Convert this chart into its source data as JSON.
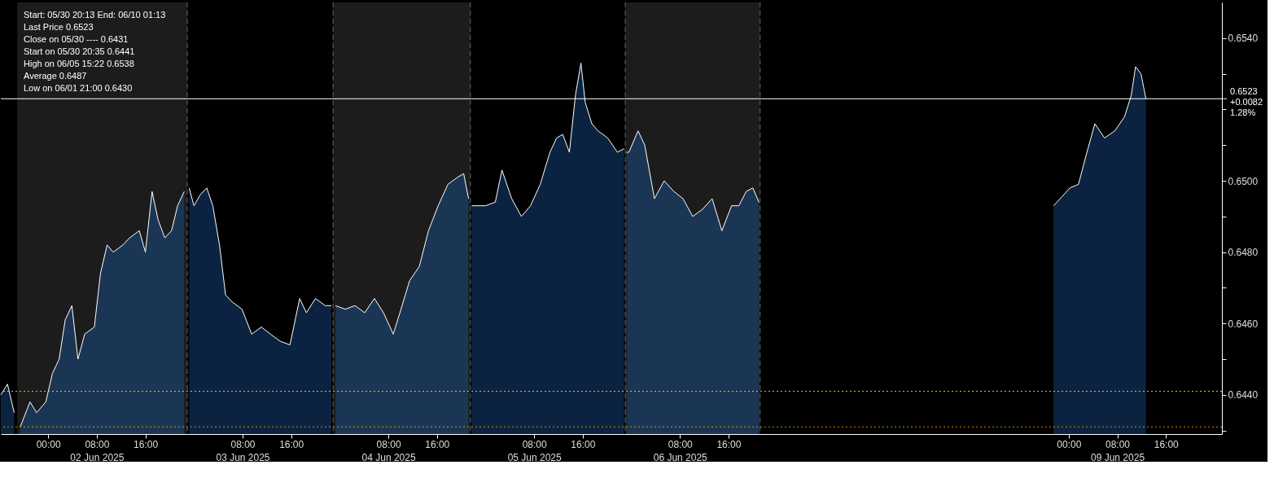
{
  "chart_data": {
    "type": "area",
    "series": [
      {
        "color": "#0b2341",
        "x": [
          "2025-06-01T16:12",
          "2025-06-01T17:18",
          "2025-06-01T18:24"
        ],
        "values": [
          0.644,
          0.6443,
          0.6435
        ]
      },
      {
        "color": "#1b3654",
        "x": [
          "2025-06-01T19:24",
          "2025-06-01T21:00",
          "2025-06-01T22:06",
          "2025-06-01T23:36",
          "2025-06-02T00:42",
          "2025-06-02T01:48",
          "2025-06-02T02:48",
          "2025-06-02T03:54",
          "2025-06-02T04:54",
          "2025-06-02T06:00",
          "2025-06-02T07:36",
          "2025-06-02T08:36",
          "2025-06-02T09:42",
          "2025-06-02T10:42",
          "2025-06-02T12:18",
          "2025-06-02T13:24",
          "2025-06-02T15:00",
          "2025-06-02T16:00",
          "2025-06-02T17:06",
          "2025-06-02T18:06",
          "2025-06-02T19:12",
          "2025-06-02T20:18",
          "2025-06-02T21:18",
          "2025-06-02T22:24"
        ],
        "values": [
          0.6431,
          0.6438,
          0.6435,
          0.6438,
          0.6446,
          0.645,
          0.6461,
          0.6465,
          0.645,
          0.6457,
          0.6459,
          0.6474,
          0.6482,
          0.648,
          0.6482,
          0.6484,
          0.6486,
          0.648,
          0.6497,
          0.6489,
          0.6484,
          0.6486,
          0.6493,
          0.6497
        ]
      },
      {
        "color": "#0b2341",
        "x": [
          "2025-06-02T23:12",
          "2025-06-03T00:00",
          "2025-06-03T01:00",
          "2025-06-03T02:06",
          "2025-06-03T03:06",
          "2025-06-03T04:12",
          "2025-06-03T05:12",
          "2025-06-03T06:18",
          "2025-06-03T07:54",
          "2025-06-03T09:30",
          "2025-06-03T11:06",
          "2025-06-03T12:36",
          "2025-06-03T14:12",
          "2025-06-03T15:48",
          "2025-06-03T17:24",
          "2025-06-03T18:30",
          "2025-06-03T20:00",
          "2025-06-03T21:36",
          "2025-06-03T22:36"
        ],
        "values": [
          0.6498,
          0.6493,
          0.6496,
          0.6498,
          0.6493,
          0.6482,
          0.6468,
          0.6466,
          0.6464,
          0.6457,
          0.6459,
          0.6457,
          0.6455,
          0.6454,
          0.6467,
          0.6463,
          0.6467,
          0.6465,
          0.6465
        ]
      },
      {
        "color": "#1b3654",
        "x": [
          "2025-06-03T23:18",
          "2025-06-04T00:54",
          "2025-06-04T02:30",
          "2025-06-04T04:06",
          "2025-06-04T05:42",
          "2025-06-04T07:12",
          "2025-06-04T08:48",
          "2025-06-04T09:54",
          "2025-06-04T11:30",
          "2025-06-04T13:06",
          "2025-06-04T14:36",
          "2025-06-04T16:12",
          "2025-06-04T17:48",
          "2025-06-04T19:24",
          "2025-06-04T20:24",
          "2025-06-04T21:12"
        ],
        "values": [
          0.6465,
          0.6464,
          0.6465,
          0.6463,
          0.6467,
          0.6463,
          0.6457,
          0.6463,
          0.6472,
          0.6476,
          0.6486,
          0.6493,
          0.6499,
          0.6501,
          0.6502,
          0.6495
        ]
      },
      {
        "color": "#0b2341",
        "x": [
          "2025-06-04T21:42",
          "2025-06-05T00:00",
          "2025-06-05T01:36",
          "2025-06-05T02:42",
          "2025-06-05T04:18",
          "2025-06-05T05:54",
          "2025-06-05T07:24",
          "2025-06-05T09:00",
          "2025-06-05T10:36",
          "2025-06-05T11:42",
          "2025-06-05T12:42",
          "2025-06-05T13:48",
          "2025-06-05T14:48",
          "2025-06-05T15:42",
          "2025-06-05T16:24",
          "2025-06-05T17:30",
          "2025-06-05T18:30",
          "2025-06-05T20:06",
          "2025-06-05T21:42",
          "2025-06-05T22:48"
        ],
        "values": [
          0.6493,
          0.6493,
          0.6494,
          0.6503,
          0.6495,
          0.649,
          0.6493,
          0.6499,
          0.6508,
          0.6512,
          0.6513,
          0.6508,
          0.6524,
          0.6533,
          0.6522,
          0.6516,
          0.6514,
          0.6512,
          0.6508,
          0.6509
        ]
      },
      {
        "color": "#1b3654",
        "x": [
          "2025-06-05T23:12",
          "2025-06-05T23:36",
          "2025-06-06T01:06",
          "2025-06-06T02:12",
          "2025-06-06T03:48",
          "2025-06-06T05:24",
          "2025-06-06T07:00",
          "2025-06-06T08:30",
          "2025-06-06T10:06",
          "2025-06-06T11:42",
          "2025-06-06T13:18",
          "2025-06-06T14:54",
          "2025-06-06T16:30",
          "2025-06-06T17:42",
          "2025-06-06T18:54",
          "2025-06-06T20:00",
          "2025-06-06T21:00"
        ],
        "values": [
          0.6508,
          0.6508,
          0.6514,
          0.651,
          0.6495,
          0.65,
          0.6497,
          0.6495,
          0.649,
          0.6492,
          0.6495,
          0.6486,
          0.6493,
          0.6493,
          0.6497,
          0.6498,
          0.6494
        ]
      },
      {
        "color": "#0b2341",
        "x": [
          "2025-06-08T21:30",
          "2025-06-08T22:36",
          "2025-06-09T00:12",
          "2025-06-09T01:36",
          "2025-06-09T03:00",
          "2025-06-09T04:18",
          "2025-06-09T05:54",
          "2025-06-09T07:36",
          "2025-06-09T09:12",
          "2025-06-09T10:18",
          "2025-06-09T11:00",
          "2025-06-09T11:54",
          "2025-06-09T12:42"
        ],
        "values": [
          0.6493,
          0.6495,
          0.6498,
          0.6499,
          0.6508,
          0.6516,
          0.6512,
          0.6514,
          0.6518,
          0.6524,
          0.6532,
          0.653,
          0.6523
        ]
      }
    ],
    "xlim": [
      "2025-06-01T16:12",
      "2025-06-10T01:13"
    ],
    "xticks": [
      {
        "value": "2025-06-02T00:00",
        "label": "00:00"
      },
      {
        "value": "2025-06-02T08:00",
        "label": "08:00\n02 Jun 2025"
      },
      {
        "value": "2025-06-02T16:00",
        "label": "16:00"
      },
      {
        "value": "2025-06-03T08:00",
        "label": "08:00\n03 Jun 2025"
      },
      {
        "value": "2025-06-03T16:00",
        "label": "16:00"
      },
      {
        "value": "2025-06-04T08:00",
        "label": "08:00\n04 Jun 2025"
      },
      {
        "value": "2025-06-04T16:00",
        "label": "16:00"
      },
      {
        "value": "2025-06-05T08:00",
        "label": "08:00\n05 Jun 2025"
      },
      {
        "value": "2025-06-05T16:00",
        "label": "16:00"
      },
      {
        "value": "2025-06-06T08:00",
        "label": "08:00\n06 Jun 2025"
      },
      {
        "value": "2025-06-06T16:00",
        "label": "16:00"
      },
      {
        "value": "2025-06-09T00:00",
        "label": "00:00"
      },
      {
        "value": "2025-06-09T08:00",
        "label": "08:00\n09 Jun 2025"
      },
      {
        "value": "2025-06-09T16:00",
        "label": "16:00"
      }
    ],
    "ylim": [
      0.6429,
      0.655
    ],
    "yticks": [
      {
        "value": 0.643,
        "label": null
      },
      {
        "value": 0.644,
        "label": "0.6440"
      },
      {
        "value": 0.645,
        "label": null
      },
      {
        "value": 0.646,
        "label": "0.6460"
      },
      {
        "value": 0.647,
        "label": null
      },
      {
        "value": 0.648,
        "label": "0.6480"
      },
      {
        "value": 0.649,
        "label": null
      },
      {
        "value": 0.65,
        "label": "0.6500"
      },
      {
        "value": 0.651,
        "label": null
      },
      {
        "value": 0.652,
        "label": null
      },
      {
        "value": 0.653,
        "label": null
      },
      {
        "value": 0.654,
        "label": "0.6540"
      }
    ],
    "bands": [
      {
        "axis": "x",
        "from": "2025-06-01T18:54",
        "to": "2025-06-02T22:54",
        "color": "#1c1c1c"
      },
      {
        "axis": "x",
        "from": "2025-06-03T22:54",
        "to": "2025-06-04T21:30",
        "color": "#1c1c1c"
      },
      {
        "axis": "x",
        "from": "2025-06-05T23:00",
        "to": "2025-06-06T21:12",
        "color": "#1c1c1c"
      }
    ],
    "ref_lines": [
      {
        "axis": "y",
        "value": 0.6441,
        "color": "#e8c40c",
        "line_style": "dotted"
      },
      {
        "axis": "y",
        "value": 0.6431,
        "color": "#e8820c",
        "line_style": "dotted"
      },
      {
        "axis": "y",
        "value": 0.6523,
        "color": "#ffffff",
        "line_style": "solid",
        "label": "0.6523\n+0.0082\n1.28%"
      },
      {
        "axis": "x",
        "value": "2025-06-02T22:54",
        "color": "#666666",
        "line_style": "dashed"
      },
      {
        "axis": "x",
        "value": "2025-06-03T22:54",
        "color": "#666666",
        "line_style": "dashed"
      },
      {
        "axis": "x",
        "value": "2025-06-04T21:30",
        "color": "#666666",
        "line_style": "dashed"
      },
      {
        "axis": "x",
        "value": "2025-06-05T23:00",
        "color": "#666666",
        "line_style": "dashed"
      },
      {
        "axis": "x",
        "value": "2025-06-06T21:12",
        "color": "#666666",
        "line_style": "dashed"
      }
    ],
    "annotations": [
      "Start: 05/30 20:13 End: 06/10 01:13",
      "Last Price 0.6523",
      "Close on 05/30 ---- 0.6431",
      "Start on 05/30 20:35 0.6441",
      "High on 06/05 15:22 0.6538",
      "Average 0.6487",
      "Low on 06/01 21:00 0.6430"
    ],
    "grid": false
  }
}
